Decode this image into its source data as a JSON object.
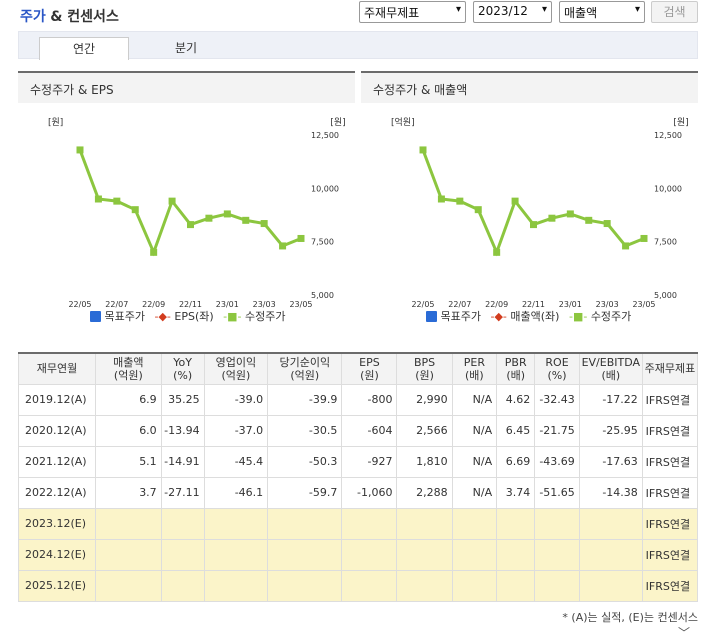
{
  "header": {
    "title_part1": "주가",
    "title_part2": "& 컨센서스",
    "select1": "주재무제표",
    "select2": "2023/12",
    "select3": "매출액",
    "search_button": "검색"
  },
  "tabs": [
    {
      "label": "연간",
      "active": true
    },
    {
      "label": "분기",
      "active": false
    }
  ],
  "panels": [
    {
      "title": "수정주가 & EPS",
      "left_unit": "[원]",
      "right_unit": "[원]",
      "legend": [
        "목표주가",
        "EPS(좌)",
        "수정주가"
      ]
    },
    {
      "title": "수정주가 & 매출액",
      "left_unit": "[억원]",
      "right_unit": "[원]",
      "legend": [
        "목표주가",
        "매출액(좌)",
        "수정주가"
      ]
    }
  ],
  "chart_data": [
    {
      "type": "line",
      "title": "수정주가 & EPS",
      "x": [
        "22/05",
        "22/06",
        "22/07",
        "22/08",
        "22/09",
        "22/10",
        "22/11",
        "22/12",
        "23/01",
        "23/02",
        "23/03",
        "23/04",
        "23/05"
      ],
      "x_tick_labels": [
        "22/05",
        "22/07",
        "22/09",
        "22/11",
        "23/01",
        "23/03",
        "23/05"
      ],
      "y_right_ticks": [
        "12,500",
        "10,000",
        "7,500",
        "5,000"
      ],
      "ylim": [
        5000,
        12500
      ],
      "series": [
        {
          "name": "수정주가",
          "values": [
            11800,
            9500,
            9400,
            9000,
            7000,
            9400,
            8300,
            8600,
            8800,
            8500,
            8350,
            7300,
            7650
          ]
        }
      ],
      "colors": {
        "target": "#2a6bd6",
        "eps": "#d23c1e",
        "price": "#8cc63f"
      }
    },
    {
      "type": "line",
      "title": "수정주가 & 매출액",
      "x": [
        "22/05",
        "22/06",
        "22/07",
        "22/08",
        "22/09",
        "22/10",
        "22/11",
        "22/12",
        "23/01",
        "23/02",
        "23/03",
        "23/04",
        "23/05"
      ],
      "x_tick_labels": [
        "22/05",
        "22/07",
        "22/09",
        "22/11",
        "23/01",
        "23/03",
        "23/05"
      ],
      "y_right_ticks": [
        "12,500",
        "10,000",
        "7,500",
        "5,000"
      ],
      "ylim": [
        5000,
        12500
      ],
      "series": [
        {
          "name": "수정주가",
          "values": [
            11800,
            9500,
            9400,
            9000,
            7000,
            9400,
            8300,
            8600,
            8800,
            8500,
            8350,
            7300,
            7650
          ]
        }
      ],
      "colors": {
        "target": "#2a6bd6",
        "eps": "#d23c1e",
        "price": "#8cc63f"
      }
    }
  ],
  "table": {
    "headers": [
      {
        "l1": "재무연월",
        "l2": ""
      },
      {
        "l1": "매출액",
        "l2": "(억원)"
      },
      {
        "l1": "YoY",
        "l2": "(%)"
      },
      {
        "l1": "영업이익",
        "l2": "(억원)"
      },
      {
        "l1": "당기순이익",
        "l2": "(억원)"
      },
      {
        "l1": "EPS",
        "l2": "(원)"
      },
      {
        "l1": "BPS",
        "l2": "(원)"
      },
      {
        "l1": "PER",
        "l2": "(배)"
      },
      {
        "l1": "PBR",
        "l2": "(배)"
      },
      {
        "l1": "ROE",
        "l2": "(%)"
      },
      {
        "l1": "EV/EBITDA",
        "l2": "(배)"
      },
      {
        "l1": "주재무제표",
        "l2": ""
      }
    ],
    "rows": [
      [
        "2019.12(A)",
        "6.9",
        "35.25",
        "-39.0",
        "-39.9",
        "-800",
        "2,990",
        "N/A",
        "4.62",
        "-32.43",
        "-17.22",
        "IFRS연결"
      ],
      [
        "2020.12(A)",
        "6.0",
        "-13.94",
        "-37.0",
        "-30.5",
        "-604",
        "2,566",
        "N/A",
        "6.45",
        "-21.75",
        "-25.95",
        "IFRS연결"
      ],
      [
        "2021.12(A)",
        "5.1",
        "-14.91",
        "-45.4",
        "-50.3",
        "-927",
        "1,810",
        "N/A",
        "6.69",
        "-43.69",
        "-17.63",
        "IFRS연결"
      ],
      [
        "2022.12(A)",
        "3.7",
        "-27.11",
        "-46.1",
        "-59.7",
        "-1,060",
        "2,288",
        "N/A",
        "3.74",
        "-51.65",
        "-14.38",
        "IFRS연결"
      ],
      [
        "2023.12(E)",
        "",
        "",
        "",
        "",
        "",
        "",
        "",
        "",
        "",
        "",
        "IFRS연결"
      ],
      [
        "2024.12(E)",
        "",
        "",
        "",
        "",
        "",
        "",
        "",
        "",
        "",
        "",
        "IFRS연결"
      ],
      [
        "2025.12(E)",
        "",
        "",
        "",
        "",
        "",
        "",
        "",
        "",
        "",
        "",
        "IFRS연결"
      ]
    ]
  },
  "footnote": "* (A)는 실적, (E)는 컨센서스"
}
